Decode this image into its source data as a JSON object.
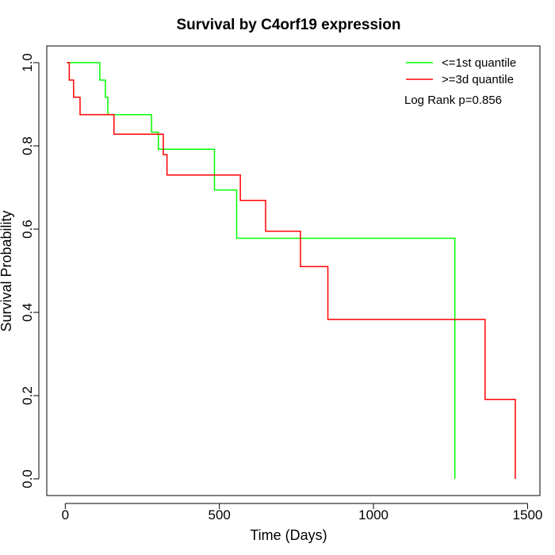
{
  "chart_data": {
    "type": "line",
    "title": "Survival by C4orf19 expression",
    "xlabel": "Time (Days)",
    "ylabel": "Survival Probability",
    "xlim": [
      -60,
      1540
    ],
    "ylim": [
      -0.04,
      1.04
    ],
    "xticks": [
      0,
      500,
      1000,
      1500
    ],
    "yticks": [
      0.0,
      0.2,
      0.4,
      0.6,
      0.8,
      1.0
    ],
    "xtick_labels": [
      "0",
      "500",
      "1000",
      "1500"
    ],
    "ytick_labels": [
      "0.0",
      "0.2",
      "0.4",
      "0.6",
      "0.8",
      "1.0"
    ],
    "grid": false,
    "legend_position": "top-right",
    "annotation": "Log Rank p=0.856",
    "series": [
      {
        "name": "<=1st quantile",
        "color": "#00ff00",
        "step": true,
        "x": [
          5,
          112,
          130,
          138,
          280,
          302,
          484,
          556,
          1264,
          1264
        ],
        "y": [
          1.0,
          0.958,
          0.917,
          0.875,
          0.833,
          0.792,
          0.694,
          0.578,
          0.578,
          0.0
        ]
      },
      {
        "name": ">=3d quantile",
        "color": "#ff0000",
        "step": true,
        "x": [
          5,
          13,
          27,
          48,
          158,
          318,
          330,
          568,
          650,
          763,
          852,
          1362,
          1460
        ],
        "y": [
          1.0,
          0.958,
          0.917,
          0.875,
          0.828,
          0.779,
          0.73,
          0.669,
          0.595,
          0.51,
          0.383,
          0.191,
          0.0
        ]
      }
    ]
  }
}
